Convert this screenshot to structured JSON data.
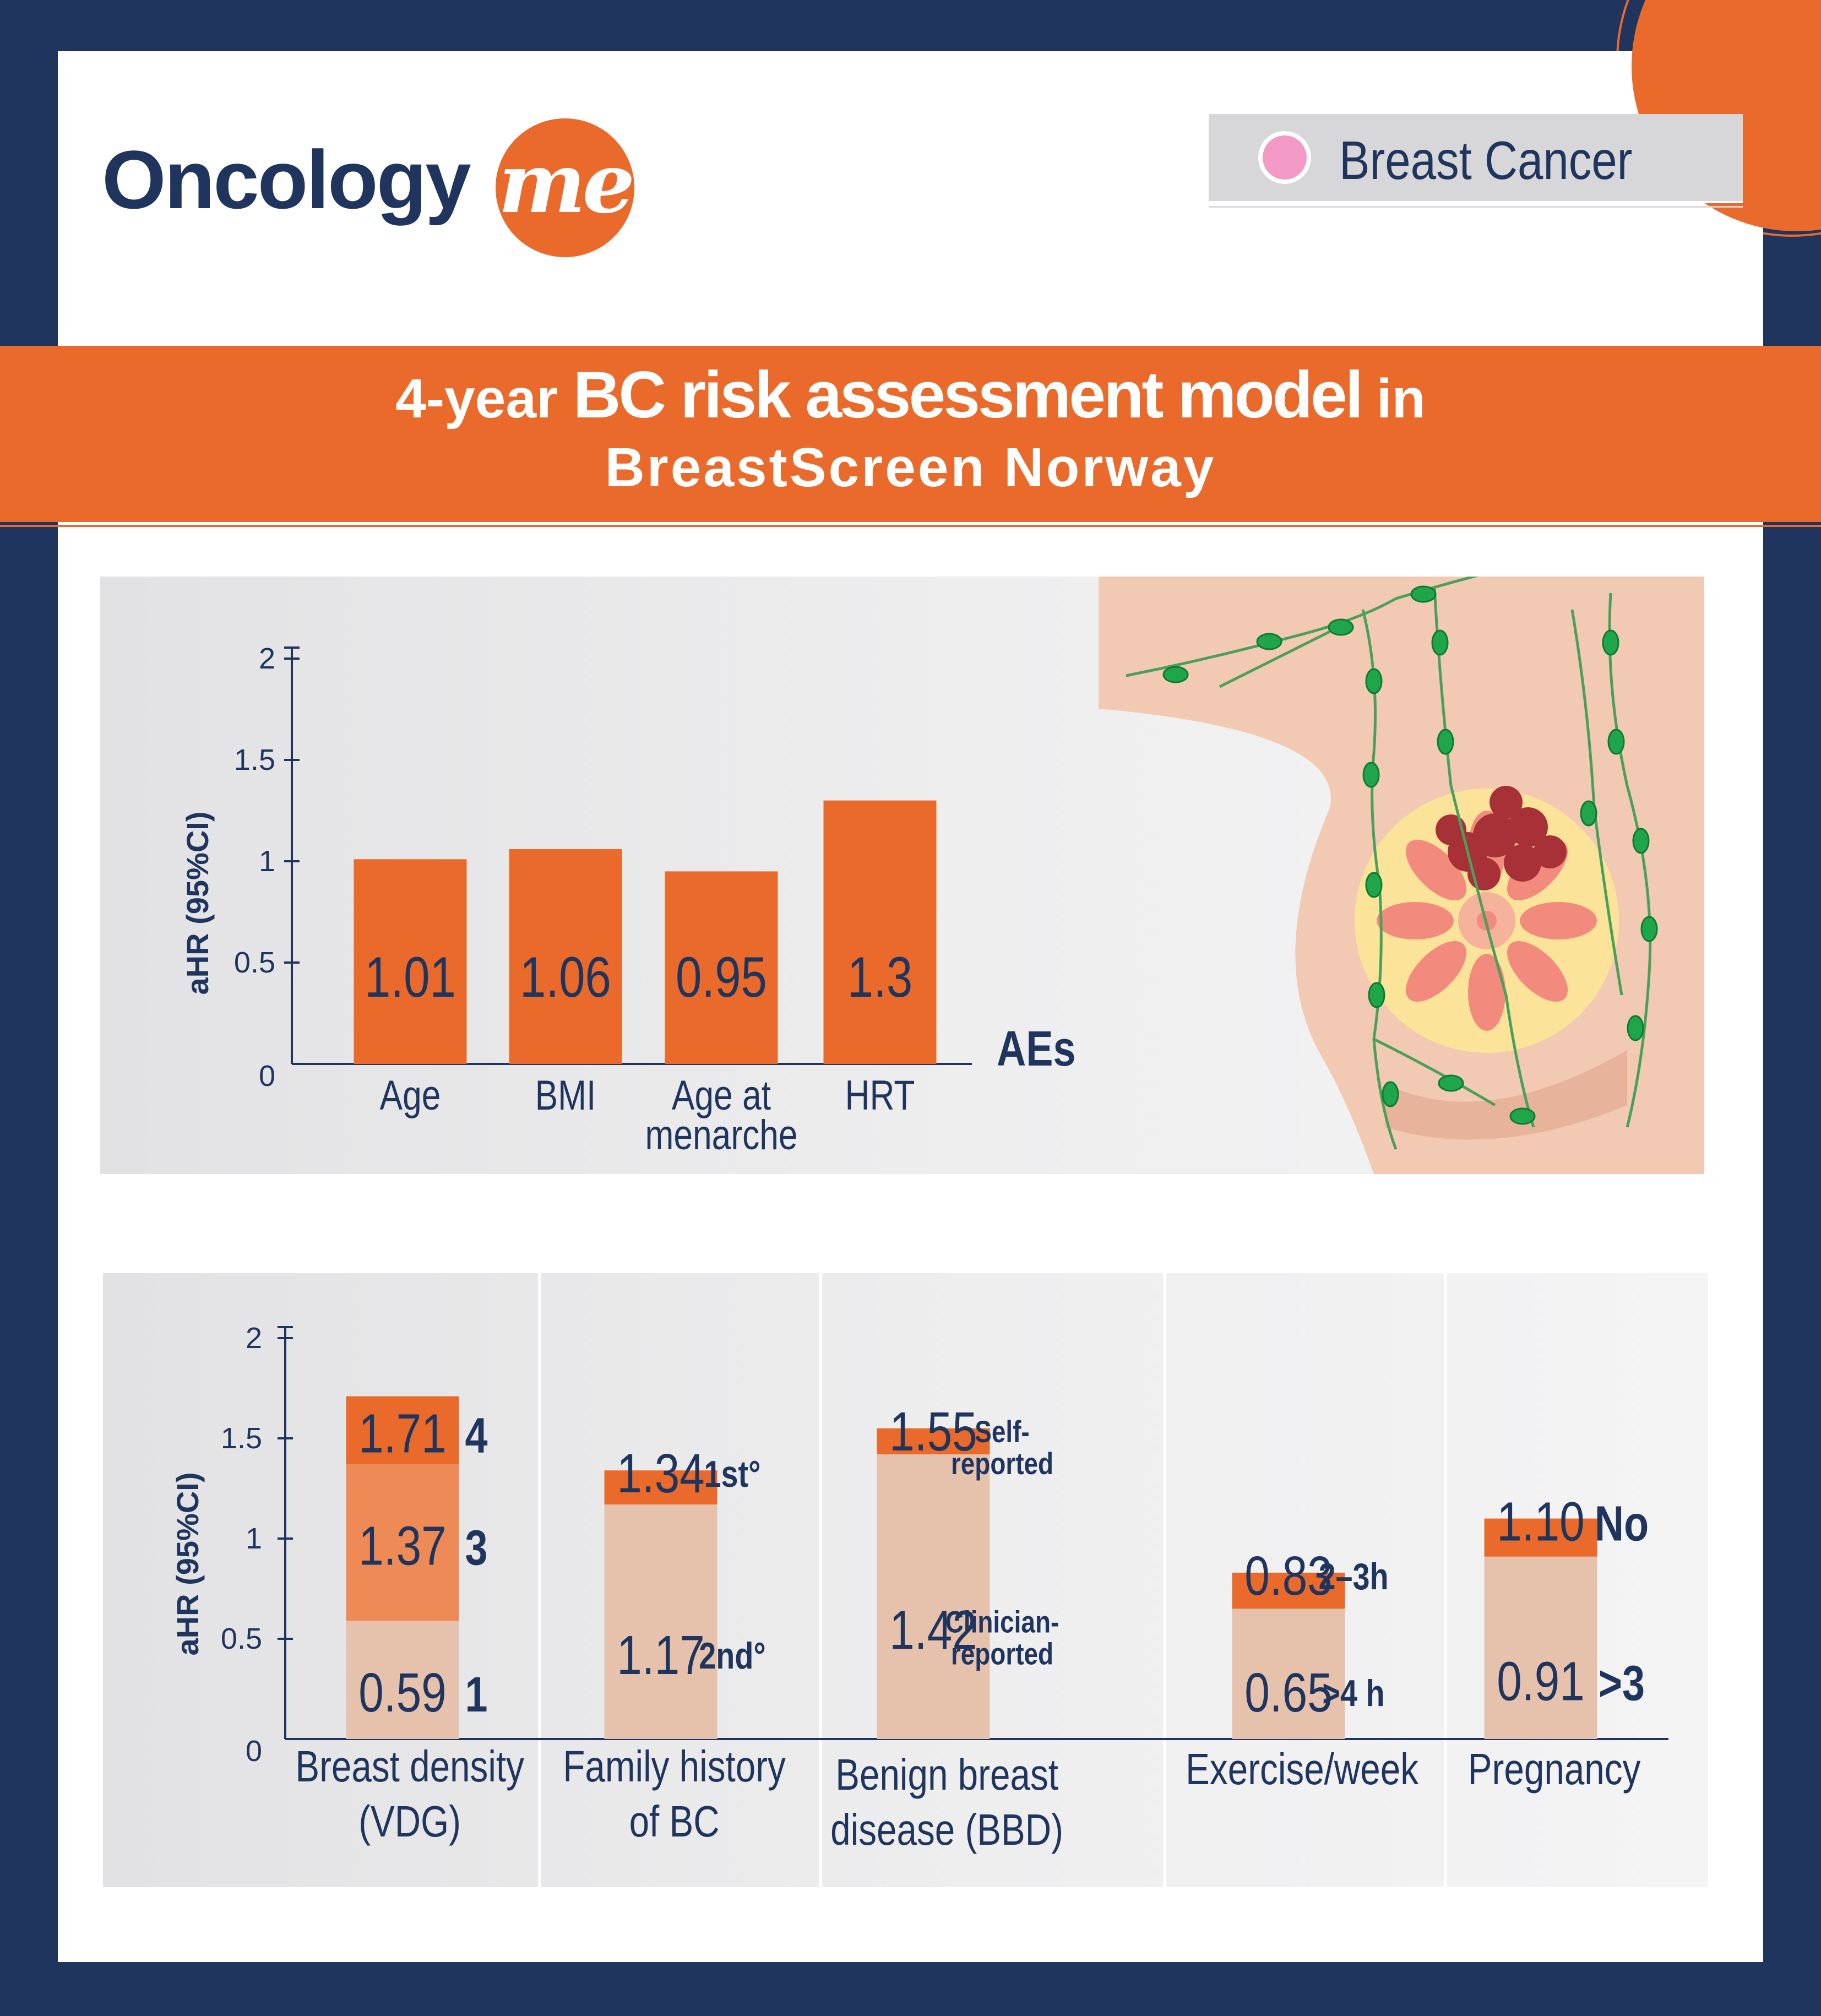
{
  "brand": {
    "name": "Oncology",
    "suffix": "me"
  },
  "topic_tag": {
    "label": "Breast Cancer"
  },
  "banner": {
    "title_part1": "4-year ",
    "title_part2": "BC risk assessment model",
    "title_part3": " in",
    "subtitle": "BreastScreen Norway"
  },
  "colors": {
    "navy": "#1f355e",
    "orange": "#e96a2a",
    "orange_mid": "#ed8a55",
    "beige": "#e6c2ad",
    "pink_tag": "#f29ac5"
  },
  "chart_data": [
    {
      "type": "bar",
      "ylabel": "aHR (95%CI)",
      "xlabel": "AEs",
      "ylim": [
        0,
        2
      ],
      "yticks": [
        "0",
        "0.5",
        "1",
        "1.5",
        "2"
      ],
      "categories": [
        "Age",
        "BMI",
        "Age at menarche",
        "HRT"
      ],
      "category_lines": [
        [
          "Age"
        ],
        [
          "BMI"
        ],
        [
          "Age at",
          "menarche"
        ],
        [
          "HRT"
        ]
      ],
      "values": [
        1.01,
        1.06,
        0.95,
        1.3
      ],
      "value_labels": [
        "1.01",
        "1.06",
        "0.95",
        "1.3"
      ]
    },
    {
      "type": "bar",
      "ylabel": "aHR (95%CI)",
      "ylim": [
        0,
        2
      ],
      "yticks": [
        "0",
        "0.5",
        "1",
        "1.5",
        "2"
      ],
      "groups": [
        {
          "category": "Breast density (VDG)",
          "category_lines": [
            "Breast density",
            "(VDG)"
          ],
          "segments": [
            {
              "label": "1",
              "value": 0.59,
              "value_label": "0.59",
              "color": "#e6c2ad"
            },
            {
              "label": "3",
              "value": 1.37,
              "value_label": "1.37",
              "color": "#ed8a55"
            },
            {
              "label": "4",
              "value": 1.71,
              "value_label": "1.71",
              "color": "#e96a2a"
            }
          ]
        },
        {
          "category": "Family history of BC",
          "category_lines": [
            "Family history",
            "of BC"
          ],
          "segments": [
            {
              "label": "2nd°",
              "value": 1.17,
              "value_label": "1.17",
              "color": "#e6c2ad"
            },
            {
              "label": "1st°",
              "value": 1.34,
              "value_label": "1.34",
              "color": "#e96a2a"
            }
          ]
        },
        {
          "category": "Benign breast disease (BBD)",
          "category_lines": [
            "Benign breast",
            "disease (BBD)"
          ],
          "segments": [
            {
              "label": "Clinician-reported",
              "label_lines": [
                "Clinician-",
                "reported"
              ],
              "value": 1.42,
              "value_label": "1.42",
              "color": "#e6c2ad"
            },
            {
              "label": "Self-reported",
              "label_lines": [
                "Self-",
                "reported"
              ],
              "value": 1.55,
              "value_label": "1.55",
              "color": "#e96a2a"
            }
          ]
        },
        {
          "category": "Exercise/week",
          "category_lines": [
            "Exercise/week"
          ],
          "segments": [
            {
              "label": ">4 h",
              "value": 0.65,
              "value_label": "0.65",
              "color": "#e6c2ad"
            },
            {
              "label": "2–3h",
              "value": 0.83,
              "value_label": "0.83",
              "color": "#e96a2a"
            }
          ]
        },
        {
          "category": "Pregnancy",
          "category_lines": [
            "Pregnancy"
          ],
          "segments": [
            {
              "label": ">3",
              "value": 0.91,
              "value_label": "0.91",
              "color": "#e6c2ad"
            },
            {
              "label": "No",
              "value": 1.1,
              "value_label": "1.10",
              "color": "#e96a2a"
            }
          ]
        }
      ]
    }
  ]
}
